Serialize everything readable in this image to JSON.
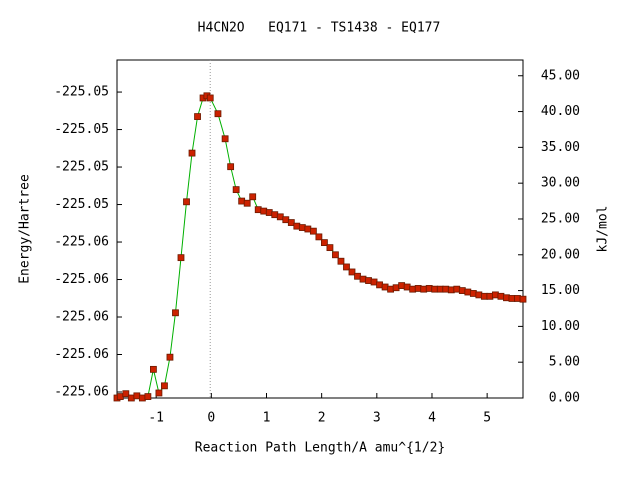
{
  "chart_data": {
    "type": "line",
    "title": "H4CN2O   EQ171 - TS1438 - EQ177",
    "x_label": "Reaction Path Length/A amu^{1/2}",
    "y_label": "Energy/Hartree",
    "y2_label": "kJ/mol",
    "xlim": [
      -1.71,
      5.65
    ],
    "xticks": [
      -1,
      0,
      1,
      2,
      3,
      4,
      5
    ],
    "ylim": [
      -225.06432,
      -225.04629
    ],
    "yticks": [
      {
        "value": -225.064,
        "label": "-225.06"
      },
      {
        "value": -225.062,
        "label": "-225.06"
      },
      {
        "value": -225.06,
        "label": "-225.06"
      },
      {
        "value": -225.058,
        "label": "-225.06"
      },
      {
        "value": -225.056,
        "label": "-225.06"
      },
      {
        "value": -225.054,
        "label": "-225.05"
      },
      {
        "value": -225.052,
        "label": "-225.05"
      },
      {
        "value": -225.05,
        "label": "-225.05"
      },
      {
        "value": -225.048,
        "label": "-225.05"
      }
    ],
    "y2lim": [
      0,
      47.2
    ],
    "y2ticks": [
      {
        "value": 0,
        "label": "0.00"
      },
      {
        "value": 5,
        "label": "5.00"
      },
      {
        "value": 10,
        "label": "10.00"
      },
      {
        "value": 15,
        "label": "15.00"
      },
      {
        "value": 20,
        "label": "20.00"
      },
      {
        "value": 25,
        "label": "25.00"
      },
      {
        "value": 30,
        "label": "30.00"
      },
      {
        "value": 35,
        "label": "35.00"
      },
      {
        "value": 40,
        "label": "40.00"
      },
      {
        "value": 45,
        "label": "45.00"
      }
    ],
    "vline_x": -0.02,
    "x": [
      -1.71,
      -1.65,
      -1.55,
      -1.45,
      -1.35,
      -1.25,
      -1.15,
      -1.05,
      -0.95,
      -0.85,
      -0.75,
      -0.65,
      -0.55,
      -0.45,
      -0.35,
      -0.25,
      -0.15,
      -0.08,
      -0.02,
      0.12,
      0.25,
      0.35,
      0.45,
      0.55,
      0.65,
      0.75,
      0.85,
      0.95,
      1.05,
      1.15,
      1.25,
      1.35,
      1.45,
      1.55,
      1.65,
      1.75,
      1.85,
      1.95,
      2.05,
      2.15,
      2.25,
      2.35,
      2.45,
      2.55,
      2.65,
      2.75,
      2.85,
      2.95,
      3.05,
      3.15,
      3.25,
      3.35,
      3.45,
      3.55,
      3.65,
      3.75,
      3.85,
      3.95,
      4.05,
      4.15,
      4.25,
      4.35,
      4.45,
      4.55,
      4.65,
      4.75,
      4.85,
      4.95,
      5.05,
      5.15,
      5.25,
      5.35,
      5.45,
      5.55,
      5.65
    ],
    "series": [
      {
        "axis": "y2",
        "color": "#00b000",
        "marker_color": "#cc2200",
        "values": [
          0,
          0.2,
          0.6,
          0,
          0.3,
          0,
          0.2,
          4.0,
          0.7,
          1.7,
          5.7,
          11.9,
          19.6,
          27.4,
          34.2,
          39.3,
          41.9,
          42.2,
          41.9,
          39.7,
          36.2,
          32.3,
          29.1,
          27.5,
          27.2,
          28.1,
          26.3,
          26.1,
          25.9,
          25.6,
          25.3,
          24.9,
          24.5,
          24.0,
          23.8,
          23.6,
          23.3,
          22.5,
          21.7,
          21.0,
          20.0,
          19.1,
          18.3,
          17.6,
          17.0,
          16.6,
          16.4,
          16.2,
          15.8,
          15.5,
          15.2,
          15.4,
          15.7,
          15.5,
          15.2,
          15.3,
          15.2,
          15.3,
          15.2,
          15.2,
          15.2,
          15.1,
          15.2,
          15.0,
          14.8,
          14.6,
          14.4,
          14.2,
          14.2,
          14.4,
          14.2,
          14.0,
          13.9,
          13.9,
          13.8
        ]
      }
    ]
  }
}
